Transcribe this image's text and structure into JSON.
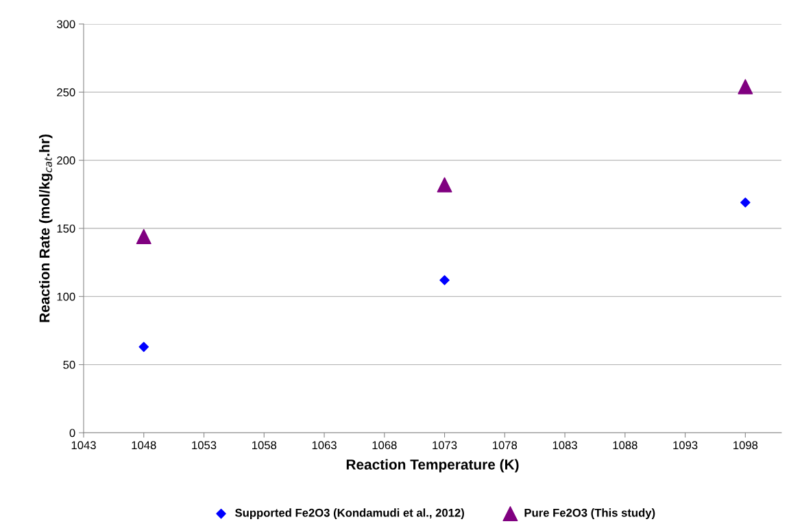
{
  "chart_data": {
    "type": "scatter",
    "xlabel": "Reaction Temperature (K)",
    "ylabel": "Reaction Rate (mol/kg$_{cat}$.hr)",
    "xlim": [
      1043,
      1101
    ],
    "xticks": [
      1043,
      1048,
      1053,
      1058,
      1063,
      1068,
      1073,
      1078,
      1083,
      1088,
      1093,
      1098
    ],
    "ylim": [
      0,
      300
    ],
    "yticks": [
      0,
      50,
      100,
      150,
      200,
      250,
      300
    ],
    "grid": "y",
    "legend": "bottom",
    "series": [
      {
        "name": "Supported Fe2O3 (Kondamudi et al., 2012)",
        "color": "#0000ff",
        "marker": "diamond",
        "x": [
          1048,
          1073,
          1098
        ],
        "values": [
          63,
          112,
          169
        ]
      },
      {
        "name": "Pure Fe2O3 (This study)",
        "color": "#800080",
        "marker": "triangle",
        "x": [
          1048,
          1073,
          1098
        ],
        "values": [
          144,
          182,
          254
        ]
      }
    ]
  }
}
